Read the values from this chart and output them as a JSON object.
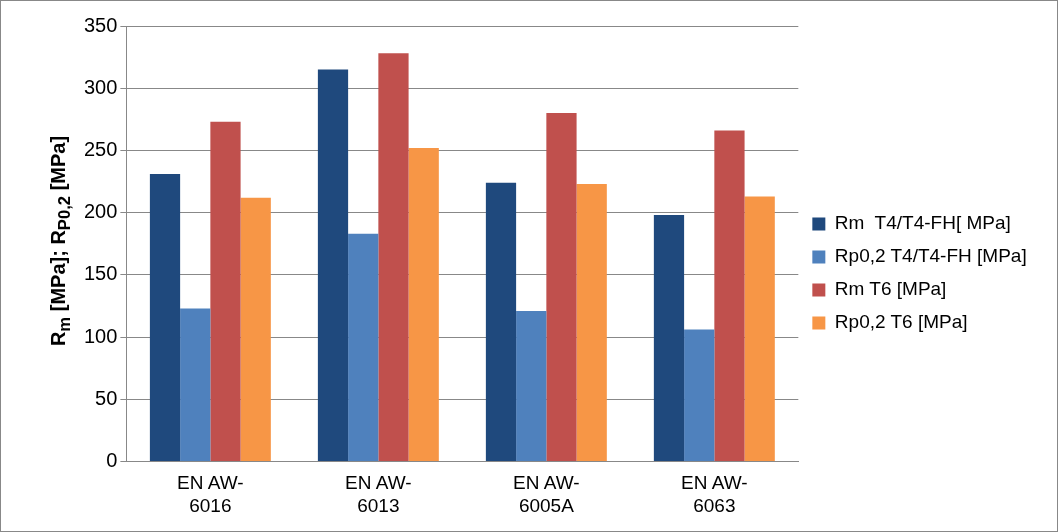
{
  "chart_data": {
    "type": "bar",
    "ylabel": "R$_{m}$ [MPa]; R$_{P0,2}$ [MPa]",
    "categories": [
      "EN AW-6016",
      "EN AW-6013",
      "EN AW-6005A",
      "EN AW-6063"
    ],
    "series": [
      {
        "name": "Rm  T4/T4-FH[ MPa]",
        "color": "#1f497d",
        "values": [
          231,
          315,
          224,
          198
        ]
      },
      {
        "name": "Rp0,2 T4/T4-FH [MPa]",
        "color": "#4f81bd",
        "values": [
          123,
          183,
          121,
          106
        ]
      },
      {
        "name": "Rm T6 [MPa]",
        "color": "#c0504d",
        "values": [
          273,
          328,
          280,
          266
        ]
      },
      {
        "name": "Rp0,2 T6 [MPa]",
        "color": "#f79646",
        "values": [
          212,
          252,
          223,
          213
        ]
      }
    ],
    "ylim": [
      0,
      350
    ],
    "yticks": [
      0,
      50,
      100,
      150,
      200,
      250,
      300,
      350
    ],
    "grid": "y",
    "legend": "right"
  }
}
